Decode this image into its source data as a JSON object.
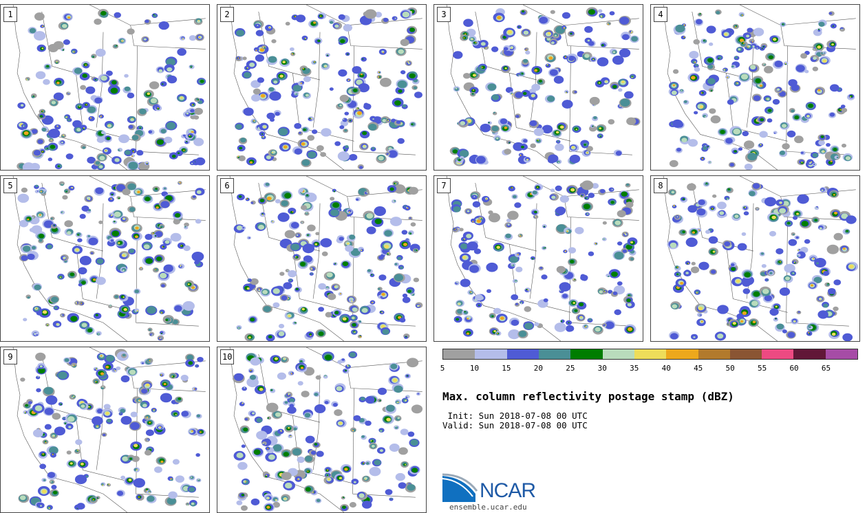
{
  "panels": [
    {
      "label": "1"
    },
    {
      "label": "2"
    },
    {
      "label": "3"
    },
    {
      "label": "4"
    },
    {
      "label": "5"
    },
    {
      "label": "6"
    },
    {
      "label": "7"
    },
    {
      "label": "8"
    },
    {
      "label": "9"
    },
    {
      "label": "10"
    }
  ],
  "colorbar": {
    "colors": [
      "#a0a0a0",
      "#b4bdea",
      "#4f5bd5",
      "#4a8f96",
      "#007d00",
      "#b9dcbc",
      "#eedd5a",
      "#eda81c",
      "#b27a2c",
      "#8a5533",
      "#ed4a82",
      "#611737",
      "#a64ca6"
    ],
    "ticks": [
      "5",
      "10",
      "15",
      "20",
      "25",
      "30",
      "35",
      "40",
      "45",
      "50",
      "55",
      "60",
      "65"
    ]
  },
  "title": "Max. column reflectivity postage stamp (dBZ)",
  "init": " Init: Sun 2018-07-08 00 UTC",
  "valid": "Valid: Sun 2018-07-08 00 UTC",
  "logo": {
    "name": "NCAR",
    "site": "ensemble.ucar.edu"
  }
}
